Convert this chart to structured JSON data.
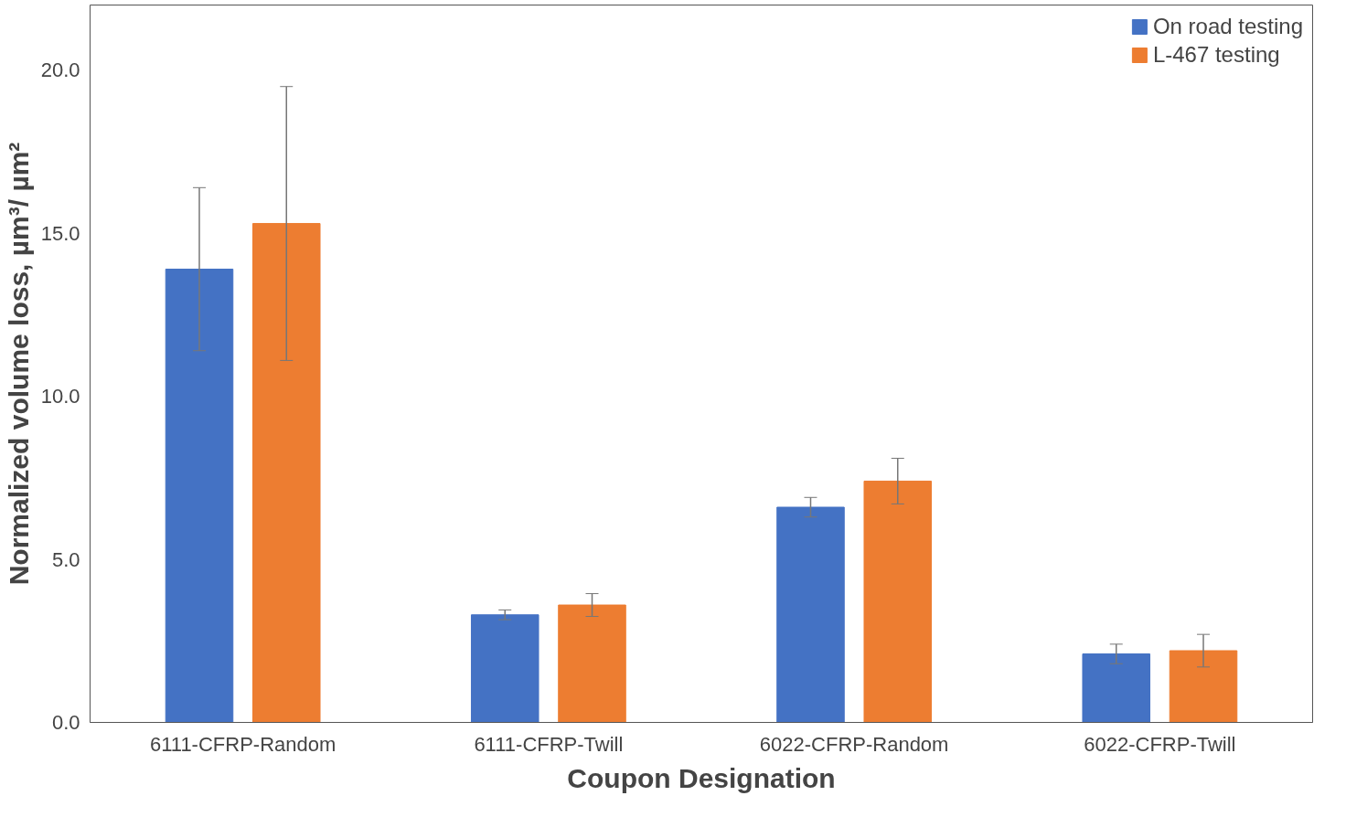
{
  "chart_data": {
    "type": "bar",
    "xlabel": "Coupon Designation",
    "ylabel": "Normalized volume loss, µm³/ µm²",
    "categories": [
      "6111-CFRP-Random",
      "6111-CFRP-Twill",
      "6022-CFRP-Random",
      "6022-CFRP-Twill"
    ],
    "series": [
      {
        "name": "On road testing",
        "color": "#4472c4",
        "values": [
          13.9,
          3.3,
          6.6,
          2.1
        ],
        "errors": [
          2.5,
          0.15,
          0.3,
          0.3
        ]
      },
      {
        "name": "L-467 testing",
        "color": "#ed7d31",
        "values": [
          15.3,
          3.6,
          7.4,
          2.2
        ],
        "errors": [
          4.2,
          0.35,
          0.7,
          0.5
        ]
      }
    ],
    "ylim": [
      0,
      22
    ],
    "yticks": [
      {
        "value": 0,
        "label": "0.0"
      },
      {
        "value": 5,
        "label": "5.0"
      },
      {
        "value": 10,
        "label": "10.0"
      },
      {
        "value": 15,
        "label": "15.0"
      },
      {
        "value": 20,
        "label": "20.0"
      }
    ],
    "grid": false,
    "legend": "top right"
  }
}
